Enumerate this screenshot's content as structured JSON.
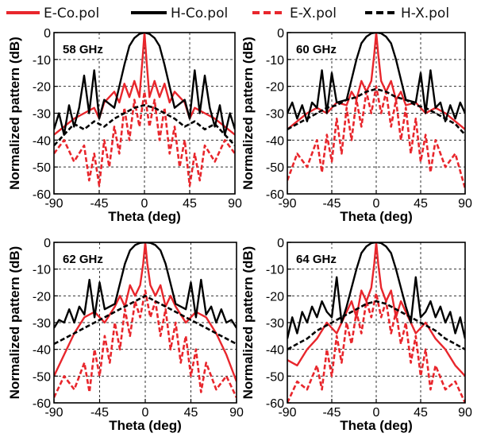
{
  "legend": [
    {
      "label": "E-Co.pol",
      "color": "#e8262c",
      "dash": "solid"
    },
    {
      "label": "H-Co.pol",
      "color": "#000000",
      "dash": "solid"
    },
    {
      "label": "E-X.pol",
      "color": "#e8262c",
      "dash": "dashed"
    },
    {
      "label": "H-X.pol",
      "color": "#000000",
      "dash": "dashed"
    }
  ],
  "chart_data": [
    {
      "type": "line",
      "title": "58 GHz",
      "xlabel": "Theta (deg)",
      "ylabel": "Normalized pattern (dB)",
      "xlim": [
        -90,
        90
      ],
      "ylim": [
        -60,
        0
      ],
      "xticks": [
        -90,
        -45,
        0,
        45,
        90
      ],
      "yticks": [
        0,
        -10,
        -20,
        -30,
        -40,
        -50,
        -60
      ],
      "grid": true,
      "series": [
        {
          "name": "E-Co.pol",
          "x": [
            -90,
            -80,
            -70,
            -60,
            -50,
            -45,
            -40,
            -30,
            -25,
            -20,
            -15,
            -10,
            -5,
            -2,
            0,
            2,
            5,
            10,
            15,
            20,
            25,
            30,
            40,
            45,
            50,
            60,
            70,
            80,
            90
          ],
          "y": [
            -38,
            -35,
            -32,
            -30,
            -28,
            -32,
            -26,
            -22,
            -26,
            -19,
            -24,
            -18,
            -24,
            -10,
            0,
            -10,
            -24,
            -18,
            -24,
            -19,
            -26,
            -22,
            -26,
            -32,
            -28,
            -30,
            -32,
            -35,
            -38
          ]
        },
        {
          "name": "H-Co.pol",
          "x": [
            -90,
            -85,
            -80,
            -75,
            -70,
            -65,
            -60,
            -55,
            -50,
            -45,
            -40,
            -30,
            -20,
            -15,
            -10,
            -5,
            0,
            5,
            10,
            15,
            20,
            30,
            40,
            45,
            50,
            55,
            60,
            65,
            70,
            75,
            80,
            85,
            90
          ],
          "y": [
            -36,
            -30,
            -38,
            -27,
            -35,
            -28,
            -16,
            -30,
            -14,
            -32,
            -25,
            -28,
            -12,
            -5,
            -2,
            -0.5,
            0,
            -0.5,
            -2,
            -5,
            -12,
            -28,
            -25,
            -32,
            -14,
            -30,
            -16,
            -28,
            -35,
            -27,
            -38,
            -30,
            -36
          ]
        },
        {
          "name": "E-X.pol",
          "x": [
            -90,
            -80,
            -70,
            -60,
            -55,
            -50,
            -45,
            -40,
            -35,
            -30,
            -25,
            -20,
            -15,
            -10,
            -5,
            0,
            5,
            10,
            15,
            20,
            25,
            30,
            35,
            40,
            45,
            50,
            55,
            60,
            70,
            80,
            90
          ],
          "y": [
            -45,
            -40,
            -48,
            -42,
            -55,
            -45,
            -57,
            -40,
            -50,
            -35,
            -45,
            -28,
            -40,
            -25,
            -35,
            -22,
            -35,
            -25,
            -40,
            -28,
            -45,
            -35,
            -50,
            -40,
            -57,
            -45,
            -55,
            -42,
            -48,
            -40,
            -45
          ]
        },
        {
          "name": "H-X.pol",
          "x": [
            -90,
            -80,
            -70,
            -60,
            -50,
            -40,
            -30,
            -20,
            -10,
            0,
            10,
            20,
            30,
            40,
            50,
            60,
            70,
            80,
            90
          ],
          "y": [
            -42,
            -38,
            -34,
            -36,
            -33,
            -35,
            -32,
            -30,
            -28,
            -27,
            -28,
            -30,
            -32,
            -35,
            -33,
            -36,
            -34,
            -38,
            -42
          ]
        }
      ]
    },
    {
      "type": "line",
      "title": "60 GHz",
      "xlabel": "Theta (deg)",
      "ylabel": "Normalized pattern (dB)",
      "xlim": [
        -90,
        90
      ],
      "ylim": [
        -60,
        0
      ],
      "xticks": [
        -90,
        -45,
        0,
        45,
        90
      ],
      "yticks": [
        0,
        -10,
        -20,
        -30,
        -40,
        -50,
        -60
      ],
      "grid": true,
      "series": [
        {
          "name": "E-Co.pol",
          "x": [
            -90,
            -80,
            -70,
            -60,
            -50,
            -40,
            -30,
            -25,
            -20,
            -15,
            -10,
            -5,
            -2,
            0,
            2,
            5,
            10,
            15,
            20,
            25,
            30,
            40,
            50,
            60,
            70,
            80,
            90
          ],
          "y": [
            -36,
            -33,
            -30,
            -28,
            -30,
            -26,
            -27,
            -22,
            -25,
            -18,
            -22,
            -18,
            -8,
            0,
            -8,
            -18,
            -22,
            -18,
            -25,
            -22,
            -27,
            -26,
            -30,
            -28,
            -30,
            -33,
            -36
          ]
        },
        {
          "name": "H-Co.pol",
          "x": [
            -90,
            -85,
            -80,
            -75,
            -70,
            -65,
            -60,
            -55,
            -50,
            -45,
            -40,
            -30,
            -20,
            -15,
            -10,
            -5,
            0,
            5,
            10,
            15,
            20,
            30,
            40,
            45,
            50,
            55,
            60,
            65,
            70,
            75,
            80,
            85,
            90
          ],
          "y": [
            -30,
            -26,
            -32,
            -27,
            -33,
            -26,
            -28,
            -14,
            -30,
            -15,
            -26,
            -25,
            -10,
            -4,
            -1.5,
            -0.3,
            0,
            -0.3,
            -1.5,
            -4,
            -10,
            -25,
            -26,
            -15,
            -30,
            -14,
            -28,
            -26,
            -33,
            -27,
            -32,
            -26,
            -30
          ]
        },
        {
          "name": "E-X.pol",
          "x": [
            -90,
            -80,
            -70,
            -60,
            -55,
            -50,
            -45,
            -40,
            -35,
            -30,
            -25,
            -20,
            -15,
            -10,
            -5,
            0,
            5,
            10,
            15,
            20,
            25,
            30,
            35,
            40,
            45,
            50,
            55,
            60,
            70,
            80,
            90
          ],
          "y": [
            -55,
            -45,
            -50,
            -40,
            -52,
            -38,
            -48,
            -32,
            -45,
            -28,
            -40,
            -25,
            -35,
            -22,
            -30,
            -20,
            -30,
            -22,
            -35,
            -25,
            -40,
            -28,
            -45,
            -32,
            -48,
            -38,
            -52,
            -40,
            -50,
            -45,
            -58
          ]
        },
        {
          "name": "H-X.pol",
          "x": [
            -90,
            -80,
            -70,
            -60,
            -50,
            -40,
            -30,
            -20,
            -10,
            0,
            10,
            20,
            30,
            40,
            50,
            60,
            70,
            80,
            90
          ],
          "y": [
            -36,
            -34,
            -32,
            -30,
            -28,
            -27,
            -25,
            -24,
            -22,
            -21,
            -22,
            -24,
            -25,
            -27,
            -28,
            -30,
            -32,
            -34,
            -38
          ]
        }
      ]
    },
    {
      "type": "line",
      "title": "62 GHz",
      "xlabel": "Theta (deg)",
      "ylabel": "Normalized pattern (dB)",
      "xlim": [
        -90,
        90
      ],
      "ylim": [
        -60,
        0
      ],
      "xticks": [
        -90,
        -45,
        0,
        45,
        90
      ],
      "yticks": [
        0,
        -10,
        -20,
        -30,
        -40,
        -50,
        -60
      ],
      "grid": true,
      "series": [
        {
          "name": "E-Co.pol",
          "x": [
            -90,
            -80,
            -70,
            -60,
            -50,
            -40,
            -30,
            -25,
            -20,
            -15,
            -10,
            -5,
            -2,
            0,
            2,
            5,
            10,
            15,
            20,
            25,
            30,
            40,
            50,
            60,
            70,
            80,
            90
          ],
          "y": [
            -50,
            -42,
            -34,
            -28,
            -26,
            -30,
            -24,
            -20,
            -24,
            -16,
            -20,
            -16,
            -8,
            0,
            -8,
            -16,
            -20,
            -16,
            -24,
            -20,
            -24,
            -30,
            -26,
            -28,
            -34,
            -42,
            -52
          ]
        },
        {
          "name": "H-Co.pol",
          "x": [
            -90,
            -85,
            -80,
            -75,
            -70,
            -65,
            -60,
            -55,
            -50,
            -45,
            -40,
            -30,
            -20,
            -15,
            -10,
            -5,
            0,
            5,
            10,
            15,
            20,
            30,
            40,
            45,
            50,
            55,
            60,
            65,
            70,
            75,
            80,
            85,
            90
          ],
          "y": [
            -32,
            -29,
            -30,
            -25,
            -30,
            -24,
            -27,
            -14,
            -28,
            -15,
            -25,
            -23,
            -8,
            -3,
            -1,
            -0.2,
            0,
            -0.2,
            -1,
            -3,
            -8,
            -23,
            -25,
            -15,
            -28,
            -14,
            -27,
            -24,
            -30,
            -25,
            -30,
            -29,
            -32
          ]
        },
        {
          "name": "E-X.pol",
          "x": [
            -90,
            -80,
            -70,
            -60,
            -55,
            -50,
            -45,
            -40,
            -35,
            -30,
            -25,
            -20,
            -15,
            -10,
            -5,
            0,
            5,
            10,
            15,
            20,
            25,
            30,
            35,
            40,
            45,
            50,
            55,
            60,
            70,
            80,
            90
          ],
          "y": [
            -58,
            -50,
            -55,
            -45,
            -56,
            -40,
            -50,
            -35,
            -45,
            -30,
            -40,
            -25,
            -35,
            -22,
            -28,
            -18,
            -28,
            -22,
            -35,
            -25,
            -40,
            -30,
            -45,
            -35,
            -50,
            -40,
            -56,
            -45,
            -55,
            -50,
            -58
          ]
        },
        {
          "name": "H-X.pol",
          "x": [
            -90,
            -80,
            -70,
            -60,
            -50,
            -40,
            -30,
            -20,
            -10,
            0,
            10,
            20,
            30,
            40,
            50,
            60,
            70,
            80,
            90
          ],
          "y": [
            -38,
            -36,
            -34,
            -32,
            -30,
            -28,
            -26,
            -24,
            -22,
            -20,
            -22,
            -24,
            -26,
            -28,
            -30,
            -32,
            -34,
            -36,
            -38
          ]
        }
      ]
    },
    {
      "type": "line",
      "title": "64 GHz",
      "xlabel": "Theta (deg)",
      "ylabel": "Normalized pattern (dB)",
      "xlim": [
        -90,
        90
      ],
      "ylim": [
        -60,
        0
      ],
      "xticks": [
        -90,
        -45,
        0,
        45,
        90
      ],
      "yticks": [
        0,
        -10,
        -20,
        -30,
        -40,
        -50,
        -60
      ],
      "grid": true,
      "series": [
        {
          "name": "E-Co.pol",
          "x": [
            -90,
            -80,
            -70,
            -60,
            -50,
            -40,
            -30,
            -25,
            -20,
            -15,
            -10,
            -5,
            -2,
            0,
            2,
            5,
            10,
            15,
            20,
            25,
            30,
            40,
            50,
            60,
            70,
            80,
            90
          ],
          "y": [
            -44,
            -46,
            -40,
            -36,
            -30,
            -34,
            -26,
            -22,
            -28,
            -18,
            -22,
            -17,
            -8,
            0,
            -8,
            -17,
            -22,
            -18,
            -28,
            -22,
            -26,
            -34,
            -30,
            -36,
            -40,
            -46,
            -50
          ]
        },
        {
          "name": "H-Co.pol",
          "x": [
            -90,
            -85,
            -80,
            -75,
            -70,
            -65,
            -60,
            -55,
            -50,
            -45,
            -40,
            -35,
            -30,
            -20,
            -15,
            -10,
            -5,
            0,
            5,
            10,
            15,
            20,
            30,
            35,
            40,
            45,
            50,
            55,
            60,
            65,
            70,
            75,
            80,
            85,
            90
          ],
          "y": [
            -36,
            -28,
            -34,
            -26,
            -30,
            -24,
            -28,
            -22,
            -26,
            -28,
            -13,
            -30,
            -24,
            -10,
            -4,
            -1.5,
            -0.3,
            0,
            -0.3,
            -1.5,
            -4,
            -10,
            -24,
            -30,
            -13,
            -28,
            -26,
            -22,
            -28,
            -24,
            -30,
            -26,
            -34,
            -28,
            -36
          ]
        },
        {
          "name": "E-X.pol",
          "x": [
            -90,
            -80,
            -70,
            -60,
            -55,
            -50,
            -45,
            -40,
            -35,
            -30,
            -25,
            -20,
            -15,
            -10,
            -5,
            0,
            5,
            10,
            15,
            20,
            25,
            30,
            35,
            40,
            45,
            50,
            55,
            60,
            70,
            80,
            90
          ],
          "y": [
            -60,
            -52,
            -55,
            -46,
            -55,
            -40,
            -50,
            -35,
            -45,
            -30,
            -38,
            -26,
            -34,
            -22,
            -28,
            -19,
            -28,
            -22,
            -34,
            -26,
            -38,
            -30,
            -45,
            -35,
            -50,
            -40,
            -55,
            -46,
            -55,
            -52,
            -60
          ]
        },
        {
          "name": "H-X.pol",
          "x": [
            -90,
            -80,
            -70,
            -60,
            -50,
            -40,
            -30,
            -20,
            -10,
            0,
            10,
            20,
            30,
            40,
            50,
            60,
            70,
            80,
            90
          ],
          "y": [
            -40,
            -38,
            -36,
            -33,
            -31,
            -29,
            -27,
            -25,
            -23,
            -22,
            -23,
            -25,
            -27,
            -29,
            -31,
            -33,
            -36,
            -38,
            -40
          ]
        }
      ]
    }
  ]
}
